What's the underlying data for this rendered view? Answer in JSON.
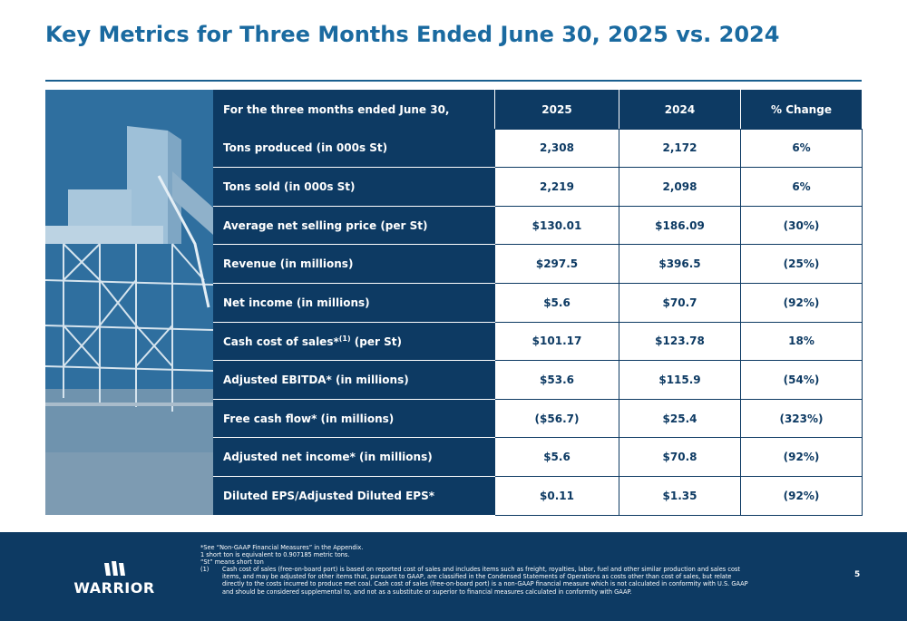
{
  "title": "Key Metrics for Three Months Ended June 30, 2025 vs. 2024",
  "table": {
    "headers": [
      "For the three months ended June 30,",
      "2025",
      "2024",
      "% Change"
    ],
    "rows": [
      {
        "label": "Tons produced (in 000s St)",
        "v2025": "2,308",
        "v2024": "2,172",
        "change": "6%"
      },
      {
        "label": "Tons sold  (in 000s St)",
        "v2025": "2,219",
        "v2024": "2,098",
        "change": "6%"
      },
      {
        "label": "Average net selling price (per St)",
        "v2025": "$130.01",
        "v2024": "$186.09",
        "change": "(30%)"
      },
      {
        "label": "Revenue (in millions)",
        "v2025": "$297.5",
        "v2024": "$396.5",
        "change": "(25%)"
      },
      {
        "label": "Net income (in millions)",
        "v2025": "$5.6",
        "v2024": "$70.7",
        "change": "(92%)"
      },
      {
        "label": "Cash cost of sales*",
        "label_sup": "(1)",
        "label_suffix": " (per St)",
        "v2025": "$101.17",
        "v2024": "$123.78",
        "change": "18%"
      },
      {
        "label": "Adjusted EBITDA* (in millions)",
        "v2025": "$53.6",
        "v2024": "$115.9",
        "change": "(54%)"
      },
      {
        "label": "Free cash flow* (in millions)",
        "v2025": "($56.7)",
        "v2024": "$25.4",
        "change": "(323%)"
      },
      {
        "label": "Adjusted net income* (in millions)",
        "v2025": "$5.6",
        "v2024": "$70.8",
        "change": "(92%)"
      },
      {
        "label": "Diluted EPS/Adjusted Diluted EPS*",
        "v2025": "$0.11",
        "v2024": "$1.35",
        "change": "(92%)"
      }
    ]
  },
  "footer": {
    "logo_text": "WARRIOR",
    "notes": [
      "*See “Non-GAAP Financial Measures” in the Appendix.",
      "1 short ton is equivalent to 0.907185 metric tons.",
      "“St” means short ton"
    ],
    "footnote_num": "(1)",
    "footnote_text": "Cash cost of sales (free-on-board port) is based on reported cost of sales and includes items such as freight, royalties, labor, fuel and other similar production and sales cost items, and may be adjusted for other items that, pursuant to GAAP, are classified in the Condensed Statements of Operations as costs other than cost of sales, but relate directly to the costs incurred to produce met coal.  Cash cost of sales (free-on-board port) is a non-GAAP financial measure which is not calculated in conformity with U.S. GAAP and should be considered supplemental to, and not as a substitute or superior to financial measures calculated in conformity with GAAP.",
    "page_number": "5"
  },
  "colors": {
    "title": "#1a6aa0",
    "navy": "#0d3a63",
    "white": "#ffffff"
  },
  "icons": {
    "logo": "warrior-logo-icon",
    "photo": "mining-facility-photo"
  }
}
